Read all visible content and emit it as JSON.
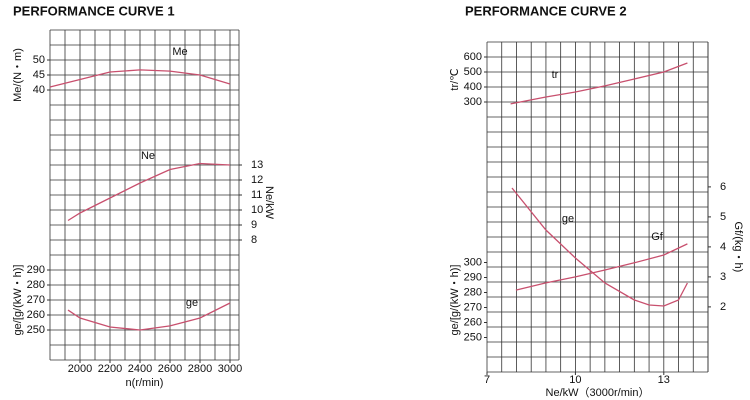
{
  "chart_data": [
    {
      "type": "line",
      "title": "PERFORMANCE CURVE 1",
      "xlabel": "n(r/min)",
      "xlim": [
        1800,
        3060
      ],
      "xticks": [
        2000,
        2200,
        2400,
        2600,
        2800,
        3000
      ],
      "grid": true,
      "series": [
        {
          "name": "Me",
          "label": "Me/(N・m)",
          "side": "left",
          "color": "#c8506e",
          "ylim": [
            -50,
            60
          ],
          "yticks": [
            40,
            45,
            50
          ],
          "x": [
            1800,
            2000,
            2200,
            2400,
            2600,
            2800,
            3000
          ],
          "values": [
            41,
            43.5,
            46,
            46.7,
            46.3,
            45,
            42
          ]
        },
        {
          "name": "Ne",
          "label": "Ne/kW",
          "side": "right",
          "color": "#c8506e",
          "ylim": [
            0,
            22
          ],
          "yticks": [
            8,
            9,
            10,
            11,
            12,
            13
          ],
          "x": [
            1920,
            2000,
            2200,
            2400,
            2600,
            2800,
            3000
          ],
          "values": [
            9.3,
            9.8,
            10.8,
            11.8,
            12.7,
            13.1,
            13
          ]
        },
        {
          "name": "ge",
          "label": "ge/[g/(kW・h)]",
          "side": "left",
          "color": "#c8506e",
          "ylim": [
            230,
            450
          ],
          "yticks": [
            250,
            260,
            270,
            280,
            290
          ],
          "x": [
            1920,
            2000,
            2200,
            2400,
            2600,
            2800,
            3000
          ],
          "values": [
            263.3,
            258,
            252,
            250,
            252.7,
            258,
            268
          ]
        }
      ]
    },
    {
      "type": "line",
      "title": "PERFORMANCE CURVE 2",
      "xlabel": "Ne/kW（3000r/min）",
      "xlim": [
        7,
        14.5
      ],
      "xticks": [
        7,
        10,
        13
      ],
      "grid": true,
      "series": [
        {
          "name": "tr",
          "label": "tr/℃",
          "side": "left",
          "color": "#c8506e",
          "ylim": [
            -1500,
            700
          ],
          "yticks": [
            300,
            400,
            500,
            600
          ],
          "x": [
            7.8,
            9,
            10,
            11,
            12,
            13,
            13.8
          ],
          "values": [
            287,
            333,
            367,
            407,
            453,
            500,
            560
          ]
        },
        {
          "name": "ge",
          "label": "ge/[g/(kW・h)]",
          "side": "left",
          "color": "#c8506e",
          "ylim": [
            227,
            447
          ],
          "yticks": [
            250,
            260,
            270,
            280,
            290,
            300
          ],
          "x": [
            7.85,
            9,
            10,
            11,
            12,
            12.5,
            13,
            13.5,
            13.8
          ],
          "values": [
            349.7,
            321.7,
            303,
            286.3,
            275,
            271.7,
            271,
            275,
            286.3
          ]
        },
        {
          "name": "Gf",
          "label": "Gf/(kg・h)",
          "side": "right",
          "color": "#c8506e",
          "ylim": [
            -0.17,
            10.83
          ],
          "yticks": [
            2,
            3,
            4,
            5,
            6
          ],
          "x": [
            7.98,
            9,
            10,
            11,
            12,
            13,
            13.8
          ],
          "values": [
            2.56,
            2.8,
            3.0,
            3.23,
            3.47,
            3.73,
            4.1
          ]
        }
      ]
    }
  ]
}
